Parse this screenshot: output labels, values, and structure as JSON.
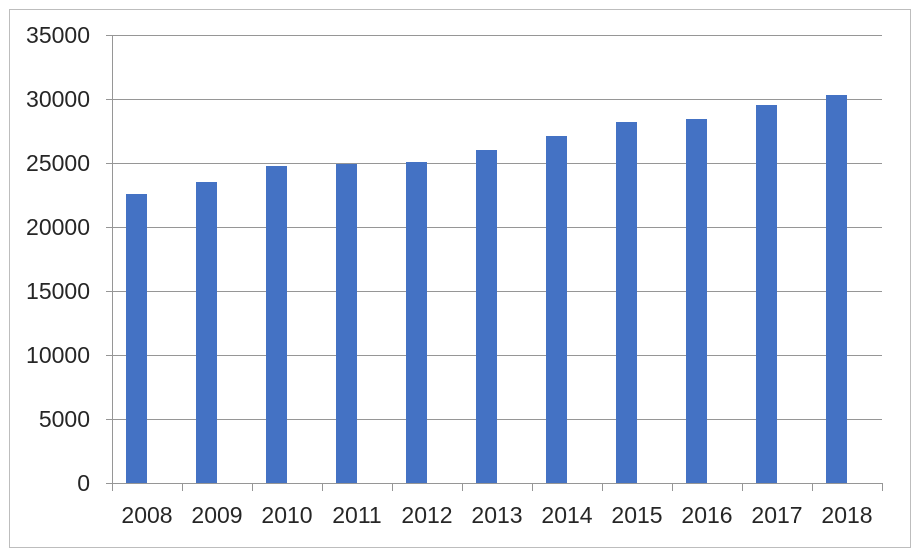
{
  "chart_data": {
    "type": "bar",
    "title": "",
    "xlabel": "",
    "ylabel": "",
    "categories": [
      "2008",
      "2009",
      "2010",
      "2011",
      "2012",
      "2013",
      "2014",
      "2015",
      "2016",
      "2017",
      "2018"
    ],
    "values": [
      22600,
      23500,
      24800,
      24900,
      25100,
      26000,
      27100,
      28200,
      28400,
      29500,
      30300
    ],
    "ylim": [
      0,
      35000
    ],
    "ytick_step": 5000,
    "ytick_labels": [
      "35000",
      "30000",
      "25000",
      "20000",
      "15000",
      "10000",
      "5000",
      "0"
    ],
    "grid": true,
    "legend": "none",
    "colors": {
      "bar": "#4472C4",
      "gridline": "#969696",
      "axis": "#969696",
      "label_text": "#262626",
      "frame_border": "#bdbdbd",
      "background": "#ffffff"
    }
  }
}
